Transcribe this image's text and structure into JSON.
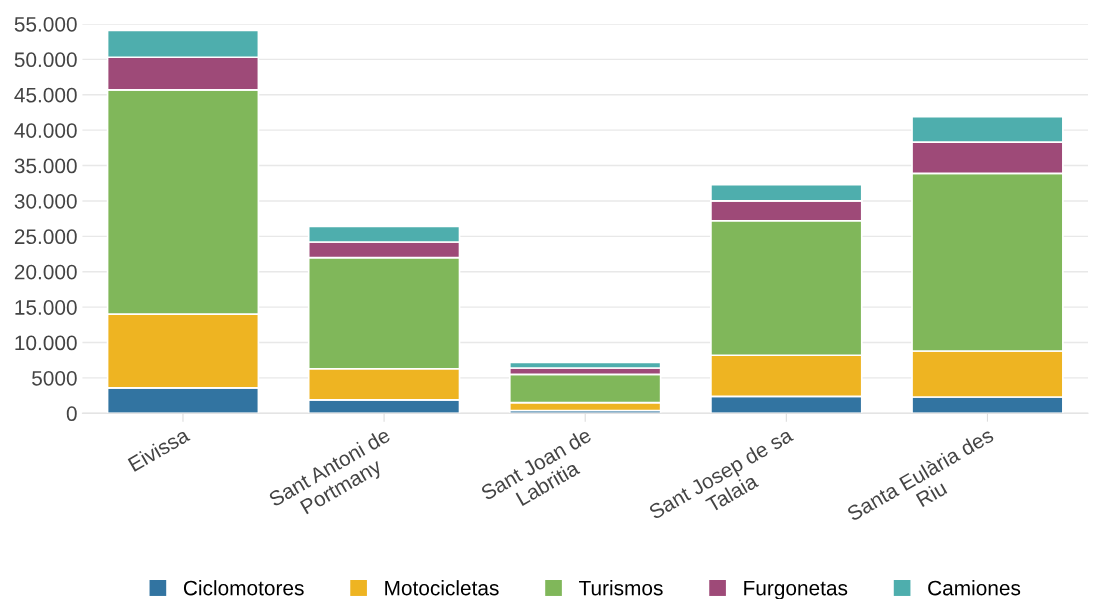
{
  "chart_data": {
    "type": "bar",
    "stacked": true,
    "categories": [
      "Eivissa",
      "Sant Antoni de\nPortmany",
      "Sant Joan de\nLabritia",
      "Sant Josep de sa\nTalaia",
      "Santa Eulària des\nRiu"
    ],
    "series": [
      {
        "name": "Ciclomotores",
        "color": "#3274a1",
        "values": [
          3600,
          1900,
          400,
          2400,
          2300
        ]
      },
      {
        "name": "Motocicletas",
        "color": "#eeb422",
        "values": [
          10400,
          4400,
          1100,
          5800,
          6500
        ]
      },
      {
        "name": "Turismos",
        "color": "#80b75a",
        "values": [
          31700,
          15700,
          4000,
          19000,
          25100
        ]
      },
      {
        "name": "Furgonetas",
        "color": "#9e4a78",
        "values": [
          4600,
          2200,
          900,
          2800,
          4400
        ]
      },
      {
        "name": "Camiones",
        "color": "#4eaead",
        "values": [
          3800,
          2200,
          800,
          2300,
          3600
        ]
      }
    ],
    "ylim": [
      0,
      55000
    ],
    "yticks": [
      0,
      5000,
      {
        "value": 10000,
        "label": "10.000"
      },
      {
        "value": 15000,
        "label": "15.000"
      },
      {
        "value": 20000,
        "label": "20.000"
      },
      {
        "value": 25000,
        "label": "25.000"
      },
      {
        "value": 30000,
        "label": "30.000"
      },
      {
        "value": 35000,
        "label": "35.000"
      },
      {
        "value": 40000,
        "label": "40.000"
      },
      {
        "value": 45000,
        "label": "45.000"
      },
      {
        "value": 50000,
        "label": "50.000"
      },
      {
        "value": 55000,
        "label": "55.000"
      }
    ],
    "grid": "y",
    "legend": "bottom"
  }
}
